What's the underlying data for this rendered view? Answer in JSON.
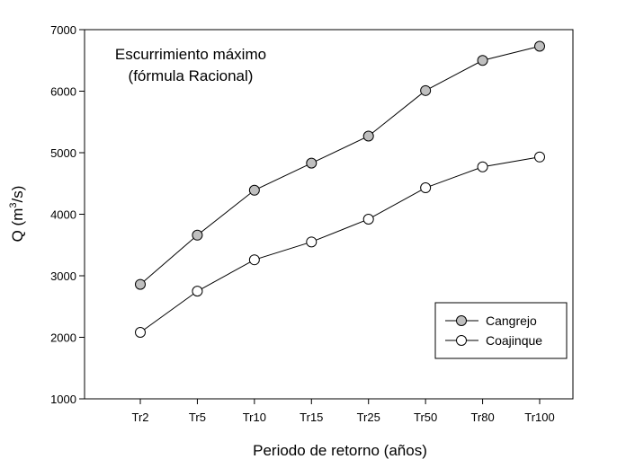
{
  "chart_data": {
    "type": "line",
    "title": "Escurrimiento máximo",
    "subtitle": "(fórmula Racional)",
    "xlabel": "Periodo de retorno (años)",
    "ylabel": {
      "prefix": "Q (m",
      "superscript": "3",
      "suffix": "/s)"
    },
    "categories": [
      "Tr2",
      "Tr5",
      "Tr10",
      "Tr15",
      "Tr25",
      "Tr50",
      "Tr80",
      "Tr100"
    ],
    "ylim": [
      1000,
      7000
    ],
    "yticks": [
      "1000",
      "2000",
      "3000",
      "4000",
      "5000",
      "6000",
      "7000"
    ],
    "grid": false,
    "legend_position": "bottom-right",
    "series": [
      {
        "name": "Cangrejo",
        "marker_fill": "#bfbfbf",
        "values": [
          2860,
          3660,
          4390,
          4830,
          5270,
          6010,
          6500,
          6730
        ]
      },
      {
        "name": "Coajinque",
        "marker_fill": "#ffffff",
        "values": [
          2080,
          2750,
          3260,
          3550,
          3920,
          4430,
          4770,
          4930
        ]
      }
    ]
  }
}
